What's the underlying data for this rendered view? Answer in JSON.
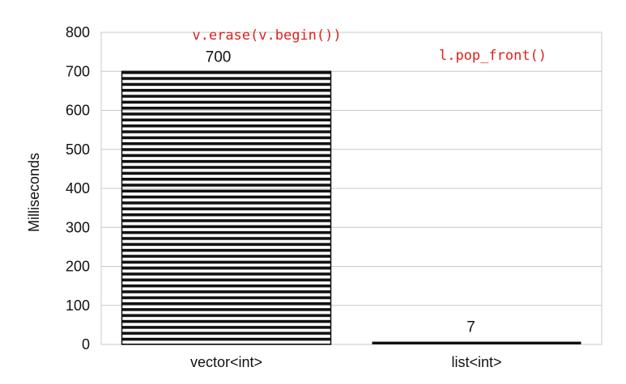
{
  "chart_data": {
    "type": "bar",
    "categories": [
      "vector<int>",
      "list<int>"
    ],
    "values": [
      700,
      7
    ],
    "data_labels": [
      "700",
      "7"
    ],
    "ylabel": "Milliseconds",
    "xlabel": "",
    "ylim": [
      0,
      800
    ],
    "yticks": [
      0,
      100,
      200,
      300,
      400,
      500,
      600,
      700,
      800
    ],
    "grid": true,
    "bar_pattern": "horizontal-stripes",
    "annotations": [
      {
        "text": "v.erase(v.begin())",
        "category": "vector<int>",
        "color": "#e0201b"
      },
      {
        "text": "l.pop_front()",
        "category": "list<int>",
        "color": "#e0201b"
      }
    ]
  }
}
